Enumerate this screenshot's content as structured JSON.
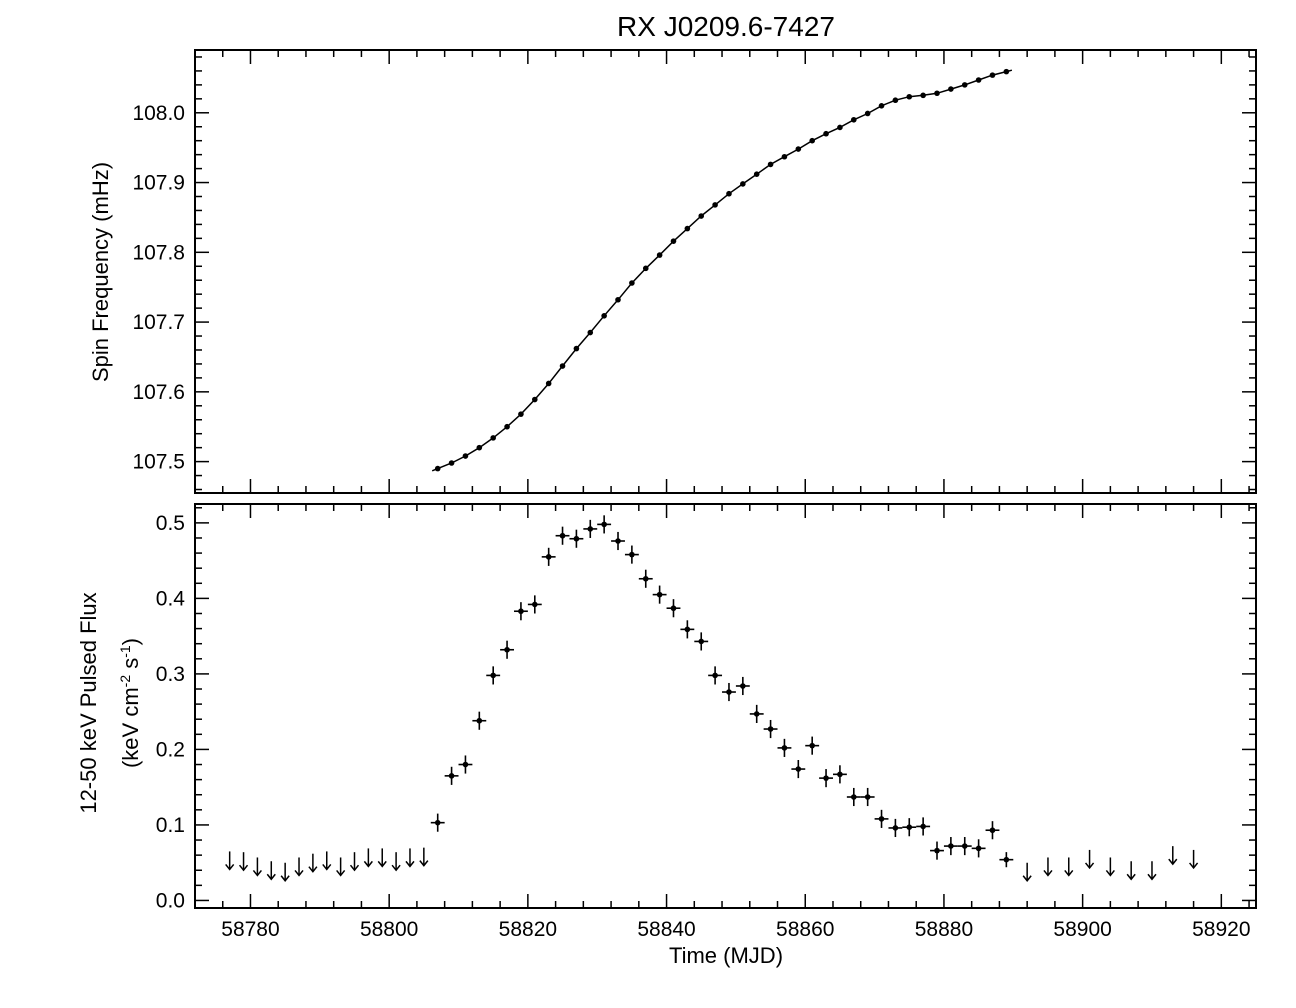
{
  "chart_data": [
    {
      "type": "line",
      "title": "RX J0209.6-7427",
      "ylabel": "Spin Frequency (mHz)",
      "xlabel": "",
      "xlim": [
        58772,
        58925
      ],
      "ylim": [
        107.455,
        108.09
      ],
      "y_ticks": [
        "107.5",
        "107.6",
        "107.7",
        "107.8",
        "107.9",
        "108.0"
      ],
      "x_ticks": [],
      "grid": false,
      "legend": "none",
      "series": [
        {
          "style": "points-with-model-curve",
          "x": [
            58807,
            58809,
            58811,
            58813,
            58815,
            58817,
            58819,
            58821,
            58823,
            58825,
            58827,
            58829,
            58831,
            58833,
            58835,
            58837,
            58839,
            58841,
            58843,
            58845,
            58847,
            58849,
            58851,
            58853,
            58855,
            58857,
            58859,
            58861,
            58863,
            58865,
            58867,
            58869,
            58871,
            58873,
            58875,
            58877,
            58879,
            58881,
            58883,
            58885,
            58887,
            58889
          ],
          "y": [
            107.49,
            107.498,
            107.508,
            107.52,
            107.534,
            107.55,
            107.568,
            107.589,
            107.612,
            107.637,
            107.662,
            107.685,
            107.709,
            107.732,
            107.756,
            107.777,
            107.796,
            107.816,
            107.834,
            107.852,
            107.868,
            107.884,
            107.898,
            107.912,
            107.926,
            107.937,
            107.948,
            107.96,
            107.97,
            107.979,
            107.99,
            107.999,
            108.01,
            108.018,
            108.023,
            108.025,
            108.028,
            108.034,
            108.04,
            108.047,
            108.054,
            108.059
          ]
        }
      ]
    },
    {
      "type": "scatter",
      "title": "",
      "xlabel": "Time (MJD)",
      "ylabel_line1": "12-50 keV Pulsed Flux",
      "ylabel_line2_prefix": "(keV cm",
      "ylabel_line2_exp1": "-2",
      "ylabel_line2_mid": " s",
      "ylabel_line2_exp2": "-1",
      "ylabel_line2_suffix": ")",
      "xlim": [
        58772,
        58925
      ],
      "ylim": [
        -0.01,
        0.525
      ],
      "x_ticks": [
        "58780",
        "58800",
        "58820",
        "58840",
        "58860",
        "58880",
        "58900",
        "58920"
      ],
      "y_ticks": [
        "0.0",
        "0.1",
        "0.2",
        "0.3",
        "0.4",
        "0.5"
      ],
      "grid": false,
      "legend": "none",
      "detections": {
        "x": [
          58807,
          58809,
          58811,
          58813,
          58815,
          58817,
          58819,
          58821,
          58823,
          58825,
          58827,
          58829,
          58831,
          58833,
          58835,
          58837,
          58839,
          58841,
          58843,
          58845,
          58847,
          58849,
          58851,
          58853,
          58855,
          58857,
          58859,
          58861,
          58863,
          58865,
          58867,
          58869,
          58871,
          58873,
          58875,
          58877,
          58879,
          58881,
          58883,
          58885,
          58887,
          58889
        ],
        "y": [
          0.103,
          0.165,
          0.18,
          0.238,
          0.298,
          0.332,
          0.383,
          0.392,
          0.455,
          0.483,
          0.479,
          0.492,
          0.498,
          0.476,
          0.458,
          0.426,
          0.405,
          0.387,
          0.359,
          0.343,
          0.298,
          0.276,
          0.284,
          0.247,
          0.227,
          0.202,
          0.174,
          0.205,
          0.162,
          0.167,
          0.137,
          0.137,
          0.108,
          0.096,
          0.097,
          0.098,
          0.066,
          0.072,
          0.072,
          0.069,
          0.093,
          0.054
        ],
        "yerr": [
          0.012,
          0.012,
          0.012,
          0.012,
          0.012,
          0.012,
          0.012,
          0.012,
          0.012,
          0.012,
          0.012,
          0.012,
          0.012,
          0.012,
          0.012,
          0.012,
          0.012,
          0.012,
          0.012,
          0.012,
          0.012,
          0.012,
          0.012,
          0.012,
          0.012,
          0.012,
          0.012,
          0.012,
          0.012,
          0.012,
          0.012,
          0.012,
          0.012,
          0.012,
          0.012,
          0.012,
          0.012,
          0.012,
          0.012,
          0.012,
          0.012,
          0.01
        ],
        "xerr": 1.0
      },
      "upper_limits": {
        "x": [
          58777,
          58779,
          58781,
          58783,
          58785,
          58787,
          58789,
          58791,
          58793,
          58795,
          58797,
          58799,
          58801,
          58803,
          58805,
          58892,
          58895,
          58898,
          58901,
          58904,
          58907,
          58910,
          58913,
          58916
        ],
        "y": [
          0.053,
          0.052,
          0.045,
          0.04,
          0.038,
          0.045,
          0.05,
          0.053,
          0.045,
          0.052,
          0.057,
          0.057,
          0.052,
          0.057,
          0.058,
          0.038,
          0.045,
          0.045,
          0.055,
          0.045,
          0.04,
          0.04,
          0.06,
          0.055
        ]
      }
    }
  ]
}
